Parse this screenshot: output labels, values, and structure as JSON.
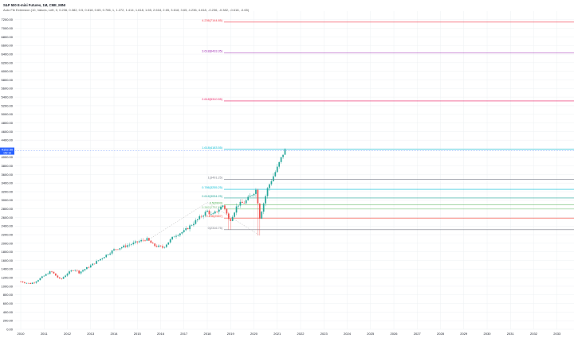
{
  "header": {
    "title": "S&P 500 E-mini Futures, 1M, CME_MINI",
    "subtitle": "Auto Fib Extension (10, Values, Left, 0, 0.236, 0.382, 0.5, 0.618, 0.65, 0.786, 1, 1.272, 1.414, 1.618, 1.65, 2.618, 2.65, 3.618, 3.65, 4.236, 4.618, -0.236, -0.382, -0.618, -0.65)"
  },
  "colors": {
    "up": "#26a69a",
    "down": "#ef5350",
    "grid": "#eef0f3",
    "axis_text": "#131722",
    "price_badge": "#2962ff"
  },
  "price_badge": {
    "price": "4152.50",
    "sub": "152:16"
  },
  "chart_data": {
    "type": "candlestick",
    "title": "S&P 500 E-mini Futures, 1M, CME_MINI",
    "ylim": [
      0,
      7400
    ],
    "y_ticks": [
      0,
      200,
      400,
      600,
      800,
      1000,
      1200,
      1400,
      1600,
      1800,
      2000,
      2200,
      2400,
      2600,
      2800,
      3000,
      3200,
      3400,
      3600,
      3800,
      4000,
      4200,
      4400,
      4600,
      4800,
      5000,
      5200,
      5400,
      5600,
      5800,
      6000,
      6200,
      6400,
      6600,
      6800,
      7000,
      7200
    ],
    "x_labels": [
      "2010",
      "2011",
      "2012",
      "2013",
      "2014",
      "2015",
      "2016",
      "2017",
      "2018",
      "2019",
      "2020",
      "2021",
      "2022",
      "2023",
      "2024",
      "2025",
      "2026",
      "2027",
      "2028",
      "2029",
      "2030",
      "2031",
      "2032",
      "2033"
    ],
    "x_start_year": 2010,
    "x_end_year": 2034,
    "last_price": 4152.5,
    "fib_levels": [
      {
        "label": "4.236(7144.85)",
        "value": 7144.85,
        "color": "#f23645"
      },
      {
        "label": "3.618(6433.35)",
        "value": 6433.35,
        "color": "#9c27b0"
      },
      {
        "label": "2.618(5310.55)",
        "value": 5310.55,
        "color": "#e91e63"
      },
      {
        "label": "1.618(4183.55)",
        "value": 4183.55,
        "color": "#00bcd4"
      },
      {
        "label": "1(3491.25)",
        "value": 3491.25,
        "color": "#787b86"
      },
      {
        "label": "0.786(3255.25)",
        "value": 3255.25,
        "color": "#00bcd4"
      },
      {
        "label": "0.618(3054.25)",
        "value": 3054.25,
        "color": "#26a69a"
      },
      {
        "label": "0.5(2893)",
        "value": 2893.0,
        "color": "#4caf50"
      },
      {
        "label": "0.382(2797.25)",
        "value": 2797.25,
        "color": "#81c784"
      },
      {
        "label": "0.236(2587)",
        "value": 2587.0,
        "color": "#f44336"
      },
      {
        "label": "0(2316.75)",
        "value": 2316.75,
        "color": "#787b86"
      }
    ],
    "anchors": [
      {
        "year": 2015.5,
        "value": 2090
      },
      {
        "year": 2018.0,
        "value": 2950
      },
      {
        "year": 2020.2,
        "value": 2200
      }
    ]
  }
}
